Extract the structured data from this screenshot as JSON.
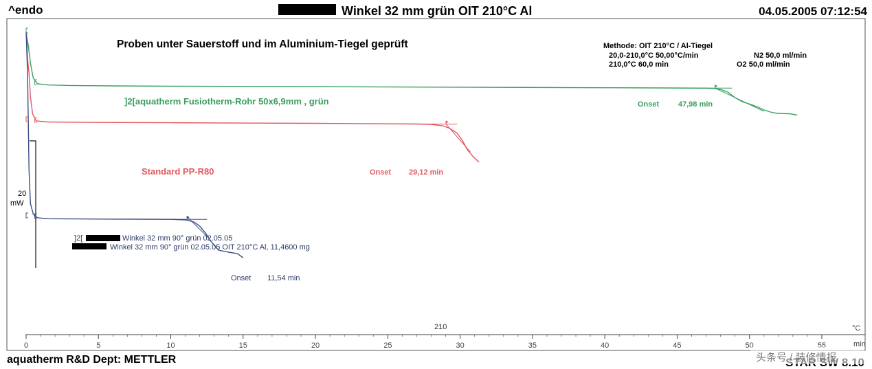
{
  "header": {
    "left": "^endo",
    "title": "Winkel 32 mm grün OIT 210°C Al",
    "datetime": "04.05.2005 07:12:54"
  },
  "subtitle": "Proben unter Sauerstoff und im Aluminium-Tiegel geprüft",
  "method": {
    "line1": "Methode: OIT 210°C / Al-Tiegel",
    "line2a": "20,0-210,0°C 50,00°C/min",
    "line2b": "N2 50,0 ml/min",
    "line3a": "210,0°C 60,0 min",
    "line3b": "O2 50,0 ml/min"
  },
  "sample_info": {
    "line1": "]2[",
    "line1b": "Winkel 32 mm 90° grün 02.05.05",
    "line2": "Winkel 32 mm 90° grün 02.05.05 OIT 210°C Al, 11,4600 mg"
  },
  "footer": {
    "left": "aquatherm R&D Dept: METTLER",
    "right": "STAR SW 8.10",
    "watermark": "头条号 / 装修情报"
  },
  "y_scale": {
    "value": "20",
    "unit": "mW"
  },
  "temp_label": "210",
  "chart_data": {
    "type": "line",
    "xlabel": "min",
    "x_unit_right": "°C",
    "xlim": [
      0,
      56
    ],
    "x_ticks": [
      0,
      5,
      10,
      15,
      20,
      25,
      30,
      35,
      40,
      45,
      50,
      55
    ],
    "x_tick_labels": [
      "0",
      "5",
      "10",
      "15",
      "20",
      "25",
      "30",
      "35",
      "40",
      "45",
      "50",
      "55"
    ],
    "series": [
      {
        "name": "]2[aquatherm Fusiotherm-Rohr 50x6,9mm , grün",
        "color": "#3a9e5f",
        "onset_label": "Onset",
        "onset_value": "47,98 min",
        "points": [
          [
            0.0,
            0.5
          ],
          [
            0.05,
            8.0
          ],
          [
            0.15,
            20.0
          ],
          [
            0.3,
            46.0
          ],
          [
            0.5,
            68.0
          ],
          [
            0.8,
            76.0
          ],
          [
            1.5,
            77.6
          ],
          [
            3,
            78.4
          ],
          [
            6,
            79.0
          ],
          [
            10,
            79.4
          ],
          [
            20,
            80.1
          ],
          [
            30,
            80.9
          ],
          [
            40,
            81.7
          ],
          [
            44,
            82.0
          ],
          [
            47,
            82.3
          ],
          [
            47.6,
            82.8
          ],
          [
            48.0,
            84.0
          ],
          [
            48.5,
            88.0
          ],
          [
            49.0,
            96.0
          ],
          [
            49.5,
            102.0
          ],
          [
            50.1,
            106.0
          ],
          [
            50.6,
            110.0
          ],
          [
            51.0,
            114.0
          ],
          [
            51.6,
            118.0
          ],
          [
            52.0,
            119.0
          ],
          [
            52.8,
            119.6
          ],
          [
            53.3,
            121.5
          ]
        ]
      },
      {
        "name": "Standard PP-R80",
        "color": "#e0595f",
        "onset_label": "Onset",
        "onset_value": "29,12 min",
        "points": [
          [
            0.0,
            0.5
          ],
          [
            0.05,
            10.0
          ],
          [
            0.1,
            40.0
          ],
          [
            0.2,
            60.0
          ],
          [
            0.3,
            95.0
          ],
          [
            0.45,
            120.0
          ],
          [
            0.7,
            130.0
          ],
          [
            1.5,
            131.5
          ],
          [
            5,
            132.2
          ],
          [
            10,
            132.6
          ],
          [
            20,
            133.5
          ],
          [
            27,
            134.5
          ],
          [
            28.0,
            135.0
          ],
          [
            28.8,
            137.0
          ],
          [
            29.3,
            141.0
          ],
          [
            29.8,
            148.0
          ],
          [
            30.2,
            160.0
          ],
          [
            30.5,
            172.0
          ],
          [
            30.9,
            182.0
          ],
          [
            31.3,
            190.0
          ]
        ]
      },
      {
        "name": "",
        "color": "#3b4f85",
        "onset_label": "Onset",
        "onset_value": "11,54 min",
        "points": [
          [
            0.0,
            0.5
          ],
          [
            0.1,
            60.0
          ],
          [
            0.2,
            200.0
          ],
          [
            0.3,
            250.0
          ],
          [
            0.5,
            266.0
          ],
          [
            0.8,
            271.0
          ],
          [
            1.5,
            272.3
          ],
          [
            5,
            272.8
          ],
          [
            8,
            273.0
          ],
          [
            10,
            273.2
          ],
          [
            11.0,
            274.0
          ],
          [
            11.6,
            277.0
          ],
          [
            12.0,
            283.0
          ],
          [
            12.4,
            293.0
          ],
          [
            12.8,
            306.0
          ],
          [
            13.3,
            318.0
          ],
          [
            14.0,
            321.0
          ],
          [
            14.6,
            323.0
          ],
          [
            15.0,
            329.0
          ]
        ]
      }
    ]
  }
}
